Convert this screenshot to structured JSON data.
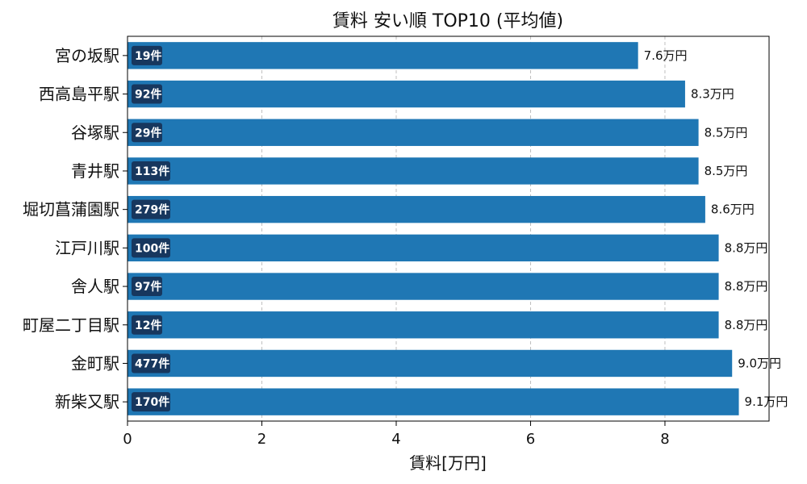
{
  "chart_data": {
    "type": "bar",
    "orientation": "horizontal",
    "title": "賃料 安い順 TOP10 (平均値)",
    "xlabel": "賃料[万円]",
    "ylabel": "",
    "xlim": [
      0,
      9.55
    ],
    "xticks": [
      0,
      2,
      4,
      6,
      8
    ],
    "grid": "x",
    "colors": {
      "bar": "#1f77b4",
      "count_badge": "#17375e"
    },
    "categories": [
      "宮の坂駅",
      "西高島平駅",
      "谷塚駅",
      "青井駅",
      "堀切菖蒲園駅",
      "江戸川駅",
      "舎人駅",
      "町屋二丁目駅",
      "金町駅",
      "新柴又駅"
    ],
    "values": [
      7.6,
      8.3,
      8.5,
      8.5,
      8.6,
      8.8,
      8.8,
      8.8,
      9.0,
      9.1
    ],
    "value_labels": [
      "7.6万円",
      "8.3万円",
      "8.5万円",
      "8.5万円",
      "8.6万円",
      "8.8万円",
      "8.8万円",
      "8.8万円",
      "9.0万円",
      "9.1万円"
    ],
    "count_labels": [
      "19件",
      "92件",
      "29件",
      "113件",
      "279件",
      "100件",
      "97件",
      "12件",
      "477件",
      "170件"
    ]
  }
}
